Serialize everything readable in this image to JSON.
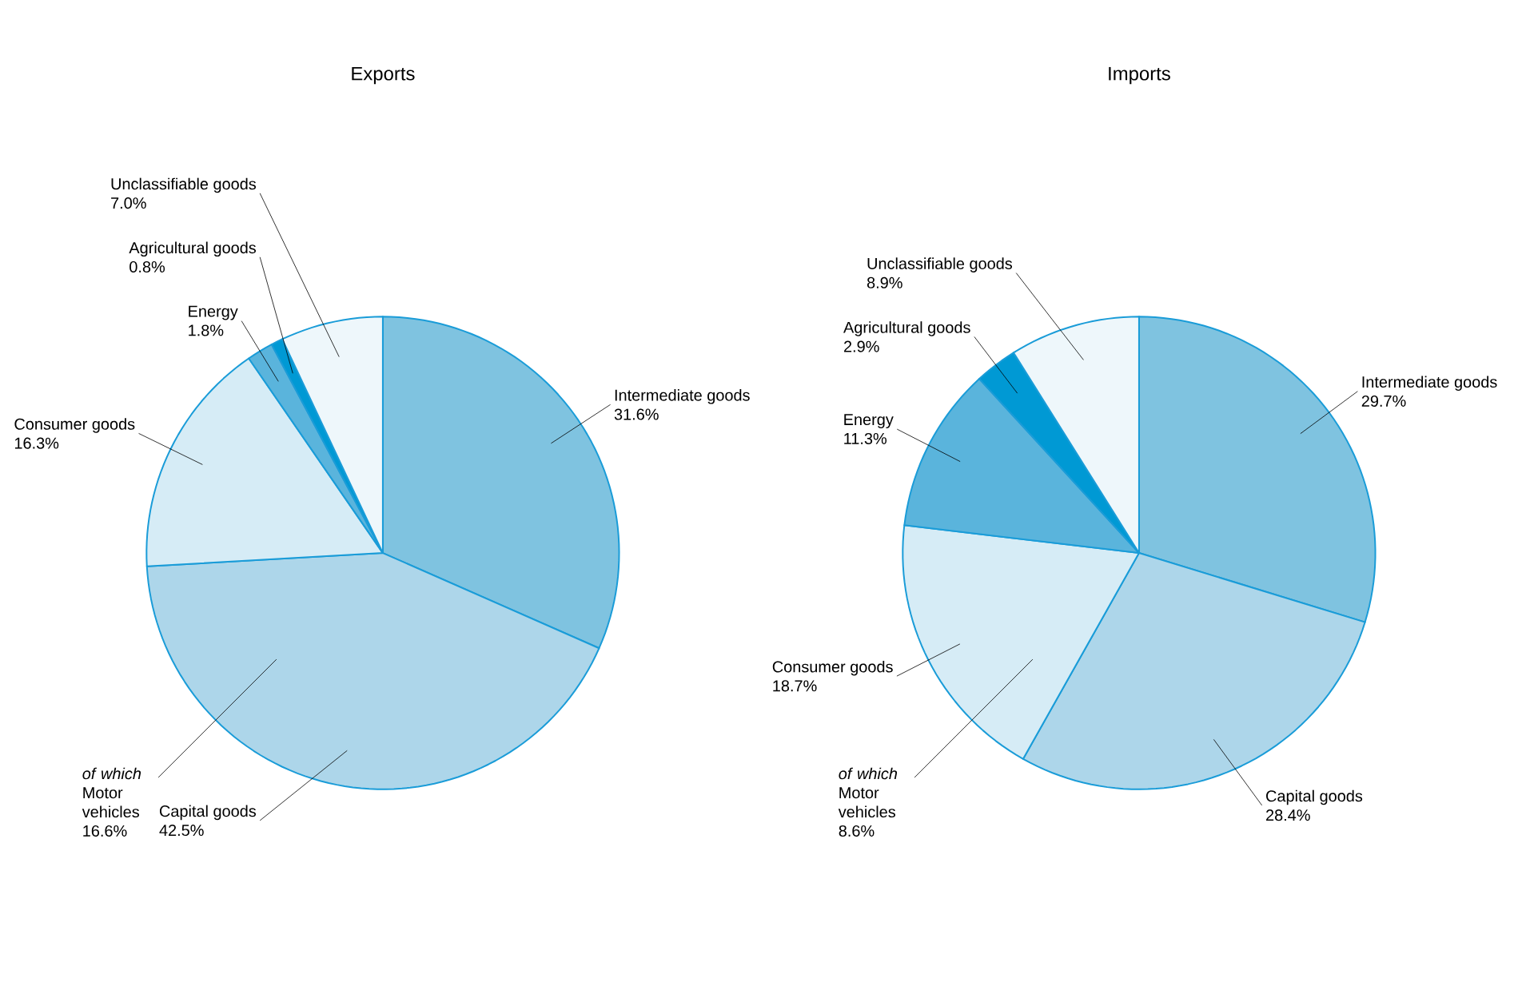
{
  "chart_data": [
    {
      "type": "pie",
      "title": "Exports",
      "categories": [
        "Intermediate goods",
        "Capital goods",
        "Consumer goods",
        "Energy",
        "Agricultural goods",
        "Unclassifiable goods"
      ],
      "values": [
        31.6,
        42.5,
        16.3,
        1.8,
        0.8,
        7.0
      ],
      "value_labels": [
        "31.6%",
        "42.5%",
        "16.3%",
        "1.8%",
        "0.8%",
        "7.0%"
      ],
      "colors": [
        "#7fc3e0",
        "#add6ea",
        "#d6ecf6",
        "#5ab4dc",
        "#0099d4",
        "#eef7fb"
      ],
      "annotations": [
        "*of which* Motor vehicles 16.6%"
      ]
    },
    {
      "type": "pie",
      "title": "Imports",
      "categories": [
        "Intermediate goods",
        "Capital goods",
        "Consumer goods",
        "Energy",
        "Agricultural goods",
        "Unclassifiable goods"
      ],
      "values": [
        29.7,
        28.4,
        18.7,
        11.3,
        2.9,
        8.9
      ],
      "value_labels": [
        "29.7%",
        "28.4%",
        "18.7%",
        "11.3%",
        "2.9%",
        "8.9%"
      ],
      "colors": [
        "#7fc3e0",
        "#add6ea",
        "#d6ecf6",
        "#5ab4dc",
        "#0099d4",
        "#eef7fb"
      ],
      "annotations": [
        "*of which* Motor vehicles 8.6%"
      ]
    }
  ]
}
